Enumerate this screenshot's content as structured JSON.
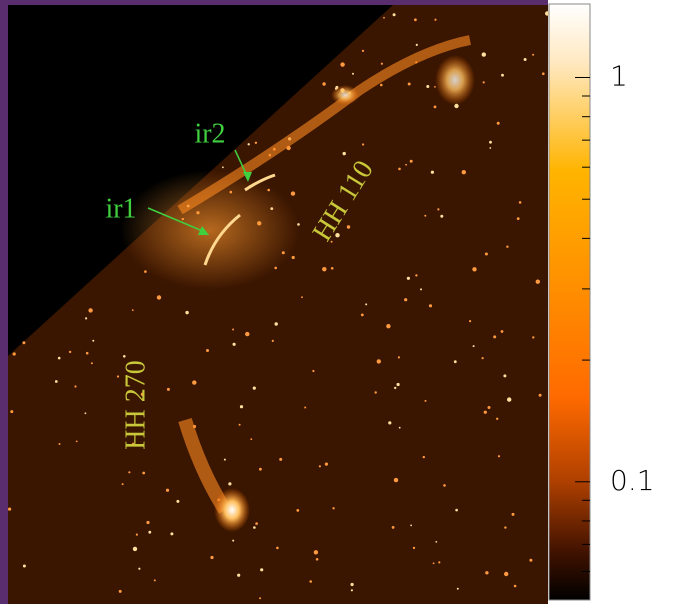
{
  "image": {
    "annotations": [
      {
        "text": "ir2",
        "color": "#3fcf3f"
      },
      {
        "text": "ir1",
        "color": "#3fcf3f"
      },
      {
        "text": "HH 110",
        "color": "#c8c83a"
      },
      {
        "text": "HH 270",
        "color": "#c8c83a"
      }
    ]
  },
  "colorbar": {
    "scale": "log",
    "lim": [
      0.051,
      1.52
    ],
    "ticks": [
      0.1,
      1
    ],
    "minor_ticks": [
      0.06,
      0.07,
      0.08,
      0.09,
      0.2,
      0.3,
      0.4,
      0.5,
      0.6,
      0.7,
      0.8,
      0.9
    ]
  }
}
